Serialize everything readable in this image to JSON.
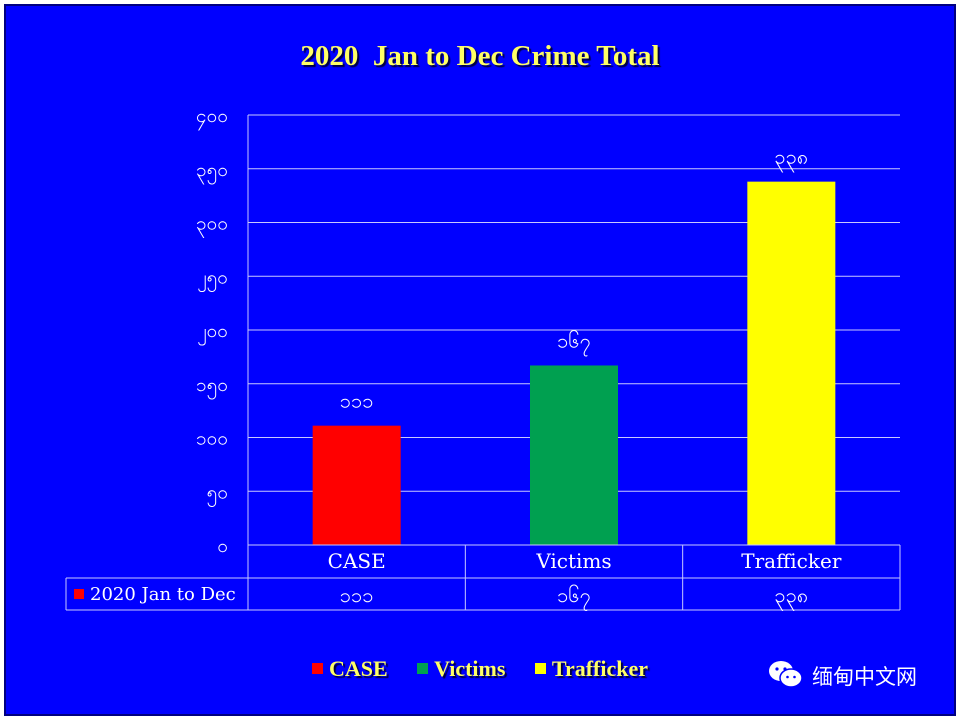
{
  "title": "2020  Jan to Dec Crime Total",
  "chart_data": {
    "type": "bar",
    "title": "2020  Jan to Dec Crime Total",
    "categories": [
      "CASE",
      "Victims",
      "Trafficker"
    ],
    "values": [
      111,
      167,
      338
    ],
    "value_labels": [
      "၁၁၁",
      "၁၆၇",
      "၃၃၈"
    ],
    "ylim": [
      0,
      400
    ],
    "yticks": [
      0,
      50,
      100,
      150,
      200,
      250,
      300,
      350,
      400
    ],
    "ytick_labels": [
      "၀",
      "၅၀",
      "၁၀၀",
      "၁၅၀",
      "၂၀၀",
      "၂၅၀",
      "၃၀၀",
      "၃၅၀",
      "၄၀၀"
    ],
    "colors": [
      "#ff0000",
      "#00a050",
      "#ffff00"
    ],
    "grid": true,
    "data_table": {
      "series_label": "2020 Jan to Dec",
      "series_color": "#ff0000",
      "cells": [
        "၁၁၁",
        "၁၆၇",
        "၃၃၈"
      ]
    },
    "legend": {
      "position": "bottom",
      "items": [
        {
          "label": "CASE",
          "color": "#ff0000"
        },
        {
          "label": "Victims",
          "color": "#00a050"
        },
        {
          "label": "Trafficker",
          "color": "#ffff00"
        }
      ]
    }
  },
  "watermark": {
    "text": "缅甸中文网",
    "icon": "wechat-icon"
  }
}
